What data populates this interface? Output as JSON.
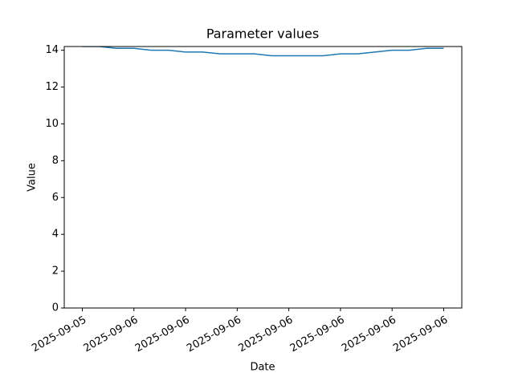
{
  "chart_data": {
    "type": "line",
    "title": "Parameter values",
    "x_label": "Date",
    "y_label": "Value",
    "x": [
      0,
      1,
      2,
      3,
      4,
      5,
      6,
      7,
      8,
      9,
      10,
      11,
      12,
      13,
      14,
      15,
      16,
      17,
      18,
      19,
      20,
      21
    ],
    "series": [
      {
        "name": "Value",
        "color": "#1f77b4",
        "values": [
          14.2,
          14.2,
          14.1,
          14.1,
          14.0,
          14.0,
          13.9,
          13.9,
          13.8,
          13.8,
          13.8,
          13.7,
          13.7,
          13.7,
          13.7,
          13.8,
          13.8,
          13.9,
          14.0,
          14.0,
          14.1,
          14.1
        ]
      }
    ],
    "xlim": [
      -1.05,
      22.05
    ],
    "xticks": [
      {
        "value": 0,
        "label": "2025-09-05"
      },
      {
        "value": 3,
        "label": "2025-09-06"
      },
      {
        "value": 6,
        "label": "2025-09-06"
      },
      {
        "value": 9,
        "label": "2025-09-06"
      },
      {
        "value": 12,
        "label": "2025-09-06"
      },
      {
        "value": 15,
        "label": "2025-09-06"
      },
      {
        "value": 18,
        "label": "2025-09-06"
      },
      {
        "value": 21,
        "label": "2025-09-06"
      }
    ],
    "ylim": [
      0,
      14.2
    ],
    "yticks": [
      0,
      2,
      4,
      6,
      8,
      10,
      12,
      14
    ],
    "grid": false
  }
}
